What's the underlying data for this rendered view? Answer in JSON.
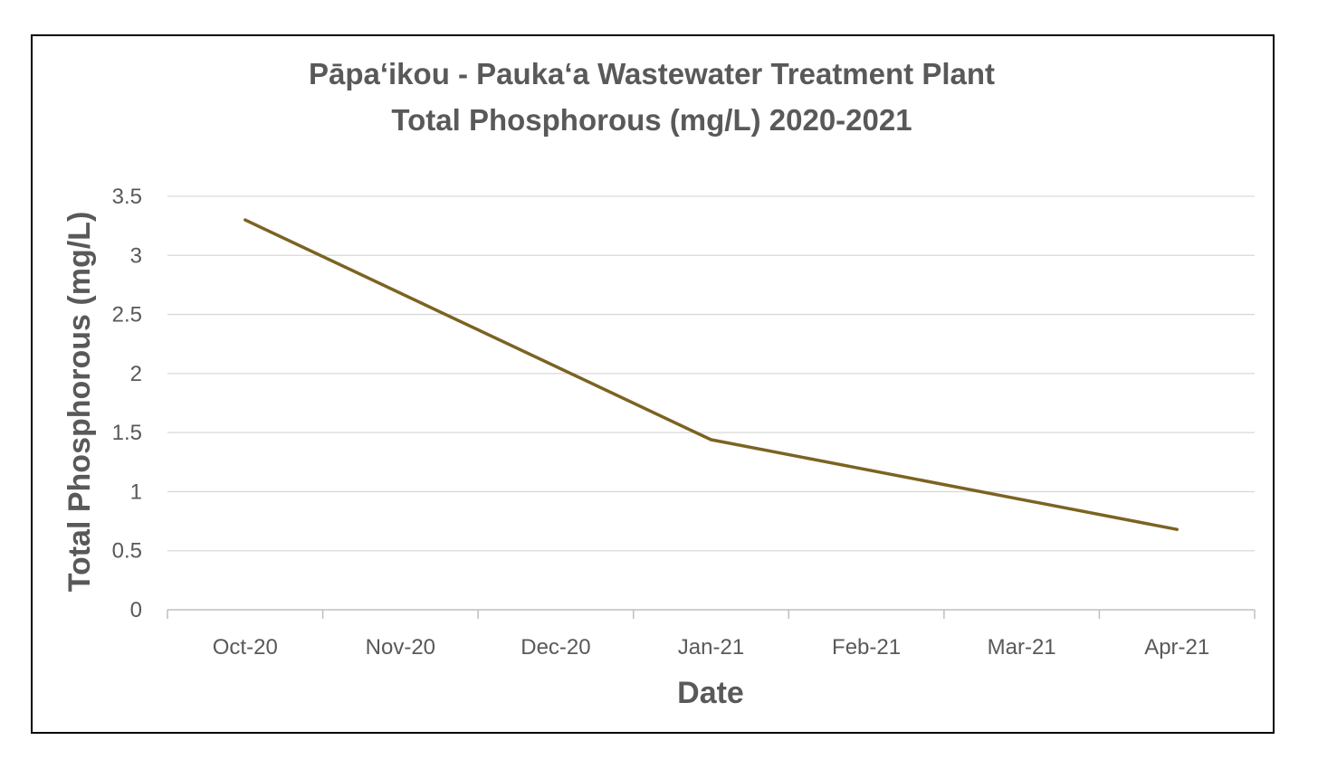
{
  "chart_data": {
    "type": "line",
    "title_lines": [
      "Pāpaʻikou - Paukaʻa Wastewater Treatment Plant",
      "Total Phosphorous (mg/L) 2020-2021"
    ],
    "xlabel": "Date",
    "ylabel": "Total Phosphorous (mg/L)",
    "categories": [
      "Oct-20",
      "Nov-20",
      "Dec-20",
      "Jan-21",
      "Feb-21",
      "Mar-21",
      "Apr-21"
    ],
    "series": [
      {
        "values": [
          {
            "x": "Oct-20",
            "y": 3.3
          },
          {
            "x": "Jan-21",
            "y": 1.44
          },
          {
            "x": "Apr-21",
            "y": 0.68
          }
        ],
        "color": "#7B6322"
      }
    ],
    "ylim": [
      0,
      3.5
    ],
    "yticks": [
      "0",
      "0.5",
      "1",
      "1.5",
      "2",
      "2.5",
      "3",
      "3.5"
    ],
    "grid": true,
    "legend": "none"
  }
}
